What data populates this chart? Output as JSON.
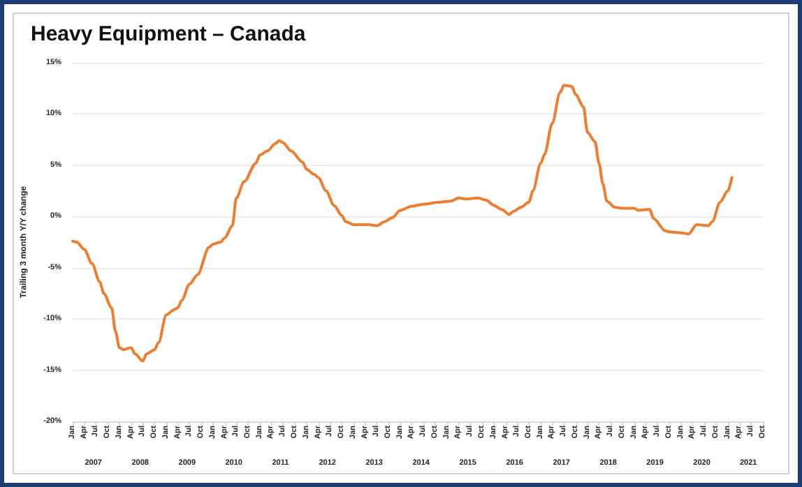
{
  "chart_data": {
    "type": "line",
    "title": "Heavy Equipment – Canada",
    "ylabel": "Trailing 3 month Y/Y change",
    "x": [
      "2007-01",
      "2007-02",
      "2007-04",
      "2007-06",
      "2007-08",
      "2007-09",
      "2007-11",
      "2007-12",
      "2008-01",
      "2008-02",
      "2008-04",
      "2008-05",
      "2008-07",
      "2008-08",
      "2008-10",
      "2008-11",
      "2009-01",
      "2009-03",
      "2009-04",
      "2009-05",
      "2009-07",
      "2009-09",
      "2009-12",
      "2010-01",
      "2010-03",
      "2010-04",
      "2010-06",
      "2010-07",
      "2010-09",
      "2010-12",
      "2011-01",
      "2011-03",
      "2011-05",
      "2011-06",
      "2011-07",
      "2011-09",
      "2011-12",
      "2012-01",
      "2012-03",
      "2012-04",
      "2012-06",
      "2012-08",
      "2012-10",
      "2012-11",
      "2013-01",
      "2013-05",
      "2013-07",
      "2013-09",
      "2013-11",
      "2014-01",
      "2014-04",
      "2014-07",
      "2014-11",
      "2015-02",
      "2015-04",
      "2015-06",
      "2015-09",
      "2015-11",
      "2016-01",
      "2016-03",
      "2016-05",
      "2016-06",
      "2016-08",
      "2016-10",
      "2016-11",
      "2017-01",
      "2017-02",
      "2017-04",
      "2017-06",
      "2017-07",
      "2017-09",
      "2017-10",
      "2017-12",
      "2018-01",
      "2018-03",
      "2018-04",
      "2018-05",
      "2018-06",
      "2018-08",
      "2018-10",
      "2019-01",
      "2019-02",
      "2019-05",
      "2019-06",
      "2019-09",
      "2019-10",
      "2020-01",
      "2020-03",
      "2020-05",
      "2020-08",
      "2020-09",
      "2020-11",
      "2021-01",
      "2021-02"
    ],
    "series": [
      {
        "color": "#ed7d31",
        "values": [
          -2.4,
          -2.5,
          -3.2,
          -4.6,
          -6.4,
          -7.5,
          -8.9,
          -11.2,
          -12.8,
          -13.0,
          -12.8,
          -13.4,
          -14.1,
          -13.4,
          -13.0,
          -12.3,
          -9.6,
          -9.1,
          -8.9,
          -8.2,
          -6.6,
          -5.7,
          -3.0,
          -2.7,
          -2.5,
          -2.1,
          -0.9,
          1.8,
          3.4,
          5.2,
          6.0,
          6.4,
          7.1,
          7.4,
          7.2,
          6.4,
          5.3,
          4.6,
          4.1,
          3.8,
          2.5,
          1.1,
          0.1,
          -0.5,
          -0.8,
          -0.8,
          -0.9,
          -0.5,
          -0.1,
          0.6,
          1.0,
          1.2,
          1.4,
          1.5,
          1.8,
          1.7,
          1.8,
          1.6,
          1.1,
          0.7,
          0.2,
          0.5,
          0.9,
          1.4,
          2.5,
          5.2,
          6.1,
          9.1,
          12.1,
          12.8,
          12.7,
          11.9,
          10.7,
          8.2,
          7.3,
          5.2,
          3.2,
          1.5,
          0.9,
          0.8,
          0.8,
          0.6,
          0.7,
          -0.2,
          -1.4,
          -1.5,
          -1.6,
          -1.7,
          -0.8,
          -0.9,
          -0.5,
          1.4,
          2.5,
          3.8
        ]
      }
    ],
    "xlim": [
      "2007-01",
      "2021-10"
    ],
    "xticks": [
      {
        "value": "2007-01",
        "label": "Jan"
      },
      {
        "value": "2007-04",
        "label": "Apr"
      },
      {
        "value": "2007-07",
        "label": "Jul"
      },
      {
        "value": "2007-10",
        "label": "Oct"
      },
      {
        "value": "2008-01",
        "label": "Jan"
      },
      {
        "value": "2008-04",
        "label": "Apr"
      },
      {
        "value": "2008-07",
        "label": "Jul"
      },
      {
        "value": "2008-10",
        "label": "Oct"
      },
      {
        "value": "2009-01",
        "label": "Jan"
      },
      {
        "value": "2009-04",
        "label": "Apr"
      },
      {
        "value": "2009-07",
        "label": "Jul"
      },
      {
        "value": "2009-10",
        "label": "Oct"
      },
      {
        "value": "2010-01",
        "label": "Jan"
      },
      {
        "value": "2010-04",
        "label": "Apr"
      },
      {
        "value": "2010-07",
        "label": "Jul"
      },
      {
        "value": "2010-10",
        "label": "Oct"
      },
      {
        "value": "2011-01",
        "label": "Jan"
      },
      {
        "value": "2011-04",
        "label": "Apr"
      },
      {
        "value": "2011-07",
        "label": "Jul"
      },
      {
        "value": "2011-10",
        "label": "Oct"
      },
      {
        "value": "2012-01",
        "label": "Jan"
      },
      {
        "value": "2012-04",
        "label": "Apr"
      },
      {
        "value": "2012-07",
        "label": "Jul"
      },
      {
        "value": "2012-10",
        "label": "Oct"
      },
      {
        "value": "2013-01",
        "label": "Jan"
      },
      {
        "value": "2013-04",
        "label": "Apr"
      },
      {
        "value": "2013-07",
        "label": "Jul"
      },
      {
        "value": "2013-10",
        "label": "Oct"
      },
      {
        "value": "2014-01",
        "label": "Jan"
      },
      {
        "value": "2014-04",
        "label": "Apr"
      },
      {
        "value": "2014-07",
        "label": "Jul"
      },
      {
        "value": "2014-10",
        "label": "Oct"
      },
      {
        "value": "2015-01",
        "label": "Jan"
      },
      {
        "value": "2015-04",
        "label": "Apr"
      },
      {
        "value": "2015-07",
        "label": "Jul"
      },
      {
        "value": "2015-10",
        "label": "Oct"
      },
      {
        "value": "2016-01",
        "label": "Jan"
      },
      {
        "value": "2016-04",
        "label": "Apr"
      },
      {
        "value": "2016-07",
        "label": "Jul"
      },
      {
        "value": "2016-10",
        "label": "Oct"
      },
      {
        "value": "2017-01",
        "label": "Jan"
      },
      {
        "value": "2017-04",
        "label": "Apr"
      },
      {
        "value": "2017-07",
        "label": "Jul"
      },
      {
        "value": "2017-10",
        "label": "Oct"
      },
      {
        "value": "2018-01",
        "label": "Jan"
      },
      {
        "value": "2018-04",
        "label": "Apr"
      },
      {
        "value": "2018-07",
        "label": "Jul"
      },
      {
        "value": "2018-10",
        "label": "Oct"
      },
      {
        "value": "2019-01",
        "label": "Jan"
      },
      {
        "value": "2019-04",
        "label": "Apr"
      },
      {
        "value": "2019-07",
        "label": "Jul"
      },
      {
        "value": "2019-10",
        "label": "Oct"
      },
      {
        "value": "2020-01",
        "label": "Jan"
      },
      {
        "value": "2020-04",
        "label": "Apr"
      },
      {
        "value": "2020-07",
        "label": "Jul"
      },
      {
        "value": "2020-10",
        "label": "Oct"
      },
      {
        "value": "2021-01",
        "label": "Jan"
      },
      {
        "value": "2021-04",
        "label": "Apr"
      },
      {
        "value": "2021-07",
        "label": "Jul"
      },
      {
        "value": "2021-10",
        "label": "Oct"
      }
    ],
    "ylim": [
      -20,
      15
    ],
    "yticks": [
      {
        "value": -20,
        "label": "-20%"
      },
      {
        "value": -15,
        "label": "-15%"
      },
      {
        "value": -10,
        "label": "-10%"
      },
      {
        "value": -5,
        "label": "-5%"
      },
      {
        "value": 0,
        "label": "0%"
      },
      {
        "value": 5,
        "label": "5%"
      },
      {
        "value": 10,
        "label": "10%"
      },
      {
        "value": 15,
        "label": "15%"
      }
    ],
    "annotations": [
      "2007",
      "2008",
      "2009",
      "2010",
      "2011",
      "2012",
      "2013",
      "2014",
      "2015",
      "2016",
      "2017",
      "2018",
      "2019",
      "2020",
      "2021"
    ],
    "grid": "y",
    "marker": "none",
    "line_style": "solid"
  }
}
